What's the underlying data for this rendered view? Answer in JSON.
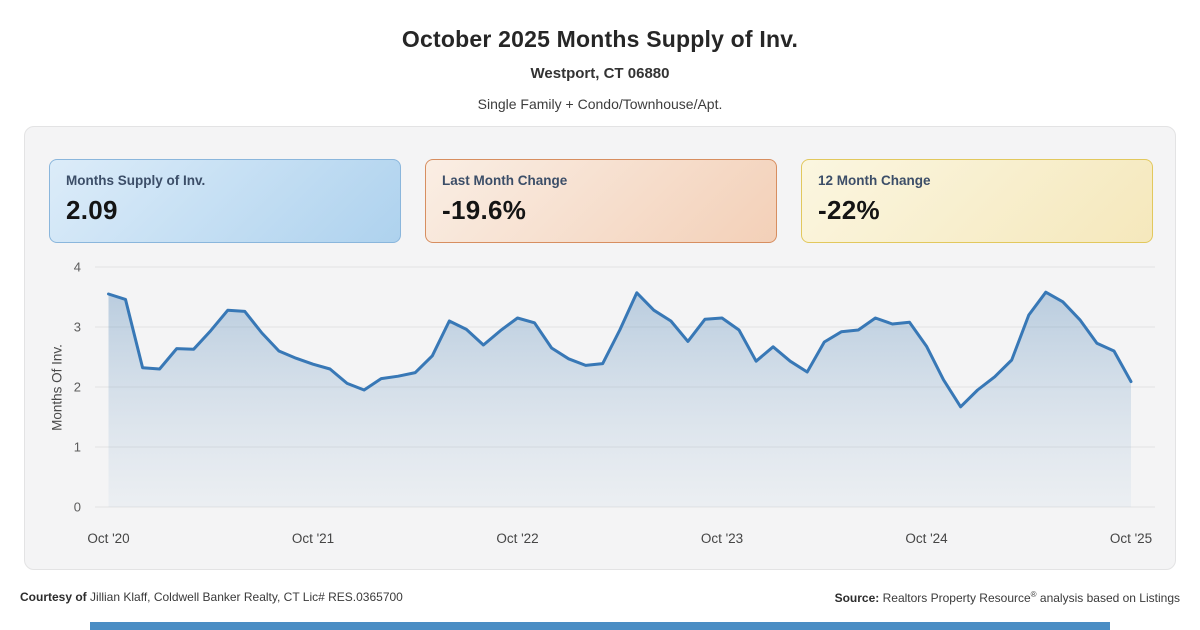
{
  "header": {
    "title": "October 2025 Months Supply of Inv.",
    "subtitle": "Westport, CT 06880",
    "series_label": "Single Family + Condo/Townhouse/Apt."
  },
  "stat_cards": [
    {
      "label": "Months Supply of Inv.",
      "value": "2.09",
      "border": "#8ab6dc",
      "bg_from": "#dcecf9",
      "bg_to": "#aed2ee"
    },
    {
      "label": "Last Month Change",
      "value": "-19.6%",
      "border": "#d78e60",
      "bg_from": "#faeee4",
      "bg_to": "#f3d0b8"
    },
    {
      "label": "12 Month Change",
      "value": "-22%",
      "border": "#e2c85d",
      "bg_from": "#fbf6e0",
      "bg_to": "#f5e8bc"
    }
  ],
  "chart_data": {
    "type": "area",
    "title": "October 2025 Months Supply of Inv.",
    "ylabel": "Months Of Inv.",
    "xlabel": "",
    "ylim": [
      0,
      4
    ],
    "yticks": [
      0,
      1,
      2,
      3,
      4
    ],
    "grid": true,
    "legend": false,
    "line_color": "#3878b6",
    "area_from": "rgba(98,145,189,0.40)",
    "area_to": "rgba(160,190,216,0.10)",
    "x_tick_labels": [
      "Oct '20",
      "Oct '21",
      "Oct '22",
      "Oct '23",
      "Oct '24",
      "Oct '25"
    ],
    "x_tick_positions": [
      0,
      12,
      24,
      36,
      48,
      60
    ],
    "months": [
      "Oct '20",
      "Nov '20",
      "Dec '20",
      "Jan '21",
      "Feb '21",
      "Mar '21",
      "Apr '21",
      "May '21",
      "Jun '21",
      "Jul '21",
      "Aug '21",
      "Sep '21",
      "Oct '21",
      "Nov '21",
      "Dec '21",
      "Jan '22",
      "Feb '22",
      "Mar '22",
      "Apr '22",
      "May '22",
      "Jun '22",
      "Jul '22",
      "Aug '22",
      "Sep '22",
      "Oct '22",
      "Nov '22",
      "Dec '22",
      "Jan '23",
      "Feb '23",
      "Mar '23",
      "Apr '23",
      "May '23",
      "Jun '23",
      "Jul '23",
      "Aug '23",
      "Sep '23",
      "Oct '23",
      "Nov '23",
      "Dec '23",
      "Jan '24",
      "Feb '24",
      "Mar '24",
      "Apr '24",
      "May '24",
      "Jun '24",
      "Jul '24",
      "Aug '24",
      "Sep '24",
      "Oct '24",
      "Nov '24",
      "Dec '24",
      "Jan '25",
      "Feb '25",
      "Mar '25",
      "Apr '25",
      "May '25",
      "Jun '25",
      "Jul '25",
      "Aug '25",
      "Sep '25",
      "Oct '25"
    ],
    "values": [
      3.55,
      3.46,
      2.32,
      2.3,
      2.64,
      2.63,
      2.94,
      3.28,
      3.26,
      2.9,
      2.6,
      2.48,
      2.38,
      2.3,
      2.06,
      1.95,
      2.14,
      2.18,
      2.24,
      2.52,
      3.1,
      2.96,
      2.7,
      2.94,
      3.15,
      3.07,
      2.65,
      2.47,
      2.36,
      2.39,
      2.95,
      3.57,
      3.28,
      3.1,
      2.76,
      3.13,
      3.15,
      2.95,
      2.43,
      2.67,
      2.43,
      2.25,
      2.75,
      2.92,
      2.95,
      3.15,
      3.05,
      3.08,
      2.68,
      2.12,
      1.67,
      1.95,
      2.17,
      2.45,
      3.2,
      3.58,
      3.42,
      3.12,
      2.73,
      2.6,
      2.09
    ]
  },
  "footer": {
    "courtesy_prefix": "Courtesy of",
    "courtesy_text": " Jillian Klaff, Coldwell Banker Realty, CT Lic# RES.0365700",
    "source_prefix": "Source:",
    "source_text_1": " Realtors Property Resource",
    "reg_symbol": "®",
    "source_text_2": " analysis based on Listings"
  },
  "colors": {
    "panel_bg": "#f4f4f5",
    "grid_line": "#e2e2e2",
    "bottom_bar": "#4a8dc4"
  }
}
